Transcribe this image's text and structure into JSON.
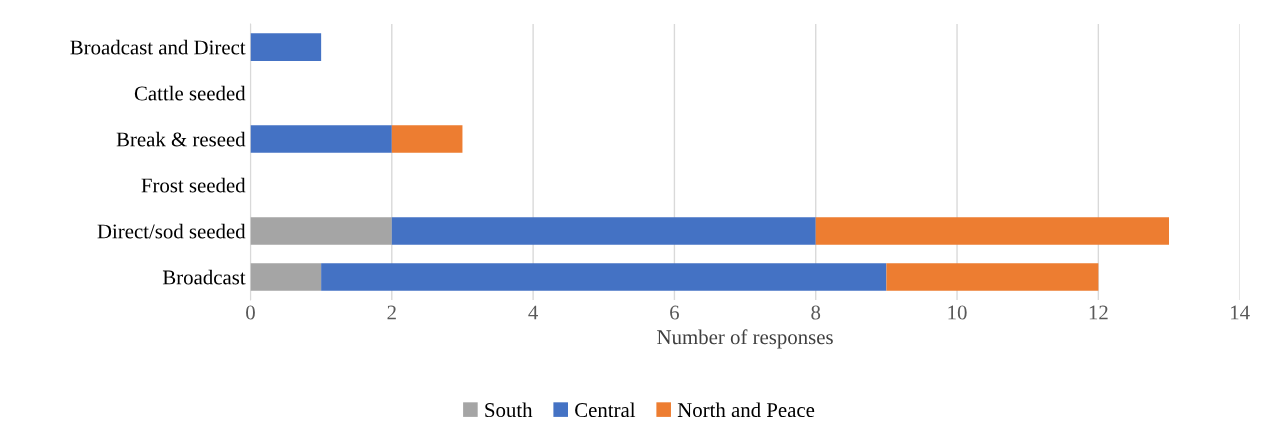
{
  "chart_data": {
    "type": "bar",
    "orientation": "horizontal",
    "stacked": true,
    "categories": [
      "Broadcast and Direct",
      "Cattle seeded",
      "Break & reseed",
      "Frost seeded",
      "Direct/sod seeded",
      "Broadcast"
    ],
    "series": [
      {
        "name": "South",
        "color": "#a5a5a5",
        "values": [
          0,
          0,
          0,
          0,
          2,
          1
        ]
      },
      {
        "name": "Central",
        "color": "#4472c4",
        "values": [
          1,
          0,
          2,
          0,
          6,
          8
        ]
      },
      {
        "name": "North and Peace",
        "color": "#ed7d31",
        "values": [
          0,
          0,
          1,
          0,
          5,
          3
        ]
      }
    ],
    "xlabel": "Number of responses",
    "xlim": [
      0,
      14
    ],
    "xticks": [
      0,
      2,
      4,
      6,
      8,
      10,
      12,
      14
    ],
    "grid": "x",
    "legend": "bottom"
  }
}
